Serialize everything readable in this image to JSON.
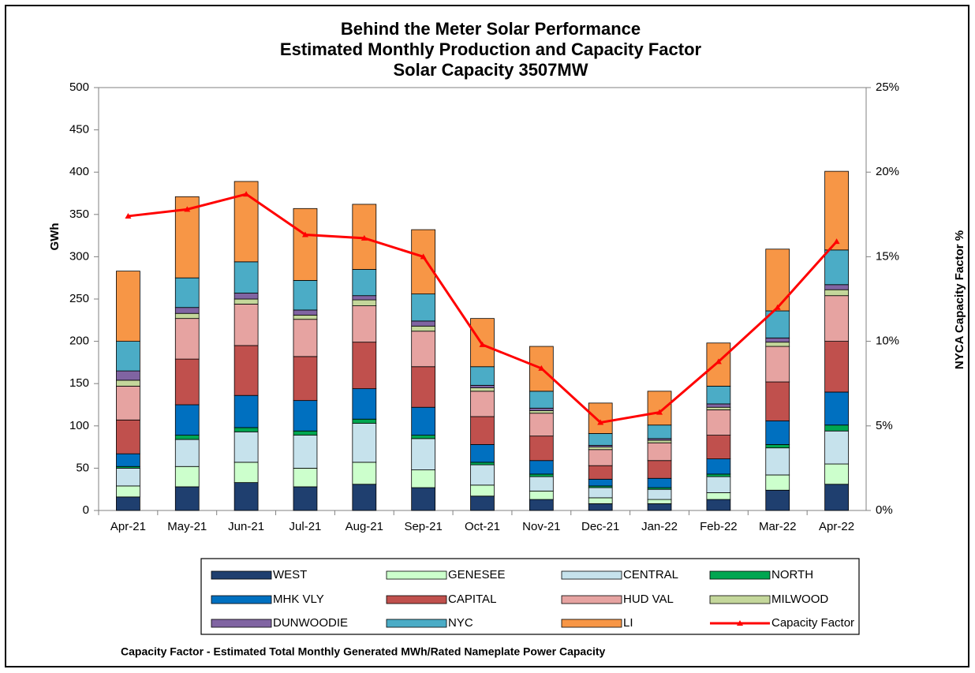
{
  "chart_data": {
    "type": "bar",
    "stacked": true,
    "title_lines": [
      "Behind the Meter Solar Performance",
      "Estimated Monthly Production and Capacity Factor",
      "Solar Capacity 3507MW"
    ],
    "ylabel": "GWh",
    "y2label": "NYCA Capacity Factor %",
    "footnote": "Capacity Factor  - Estimated Total Monthly Generated MWh/Rated Nameplate Power Capacity",
    "categories": [
      "Apr-21",
      "May-21",
      "Jun-21",
      "Jul-21",
      "Aug-21",
      "Sep-21",
      "Oct-21",
      "Nov-21",
      "Dec-21",
      "Jan-22",
      "Feb-22",
      "Mar-22",
      "Apr-22"
    ],
    "ylim": [
      0,
      500
    ],
    "yticks": [
      0,
      50,
      100,
      150,
      200,
      250,
      300,
      350,
      400,
      450,
      500
    ],
    "y2lim": [
      0,
      25
    ],
    "y2ticks": [
      {
        "value": 0,
        "label": "0%"
      },
      {
        "value": 5,
        "label": "5%"
      },
      {
        "value": 10,
        "label": "10%"
      },
      {
        "value": 15,
        "label": "15%"
      },
      {
        "value": 20,
        "label": "20%"
      },
      {
        "value": 25,
        "label": "25%"
      }
    ],
    "grid": false,
    "legend_position": "bottom",
    "series": [
      {
        "name": "WEST",
        "color": "#1f3f6f",
        "values": [
          16,
          28,
          33,
          28,
          31,
          27,
          17,
          13,
          8,
          8,
          13,
          24,
          31
        ]
      },
      {
        "name": "GENESEE",
        "color": "#ccffcc",
        "values": [
          13,
          24,
          24,
          22,
          26,
          21,
          13,
          10,
          7,
          5,
          8,
          18,
          24
        ]
      },
      {
        "name": "CENTRAL",
        "color": "#c6e2ec",
        "values": [
          21,
          32,
          36,
          39,
          46,
          37,
          24,
          17,
          12,
          12,
          19,
          32,
          39
        ]
      },
      {
        "name": "NORTH",
        "color": "#00a651",
        "values": [
          2,
          5,
          5,
          5,
          5,
          4,
          3,
          3,
          2,
          2,
          3,
          4,
          7
        ]
      },
      {
        "name": "MHK VLY",
        "color": "#0070c0",
        "values": [
          15,
          36,
          38,
          36,
          36,
          33,
          21,
          16,
          8,
          11,
          18,
          28,
          39
        ]
      },
      {
        "name": "CAPITAL",
        "color": "#c0504d",
        "values": [
          40,
          54,
          59,
          52,
          55,
          48,
          33,
          29,
          16,
          21,
          28,
          46,
          60
        ]
      },
      {
        "name": "HUD VAL",
        "color": "#e6a3a1",
        "values": [
          40,
          48,
          49,
          44,
          43,
          42,
          30,
          27,
          19,
          21,
          30,
          42,
          54
        ]
      },
      {
        "name": "MILWOOD",
        "color": "#c4d79b",
        "values": [
          7,
          6,
          6,
          5,
          7,
          6,
          4,
          3,
          3,
          3,
          3,
          5,
          7
        ]
      },
      {
        "name": "DUNWOODIE",
        "color": "#8064a2",
        "values": [
          11,
          7,
          7,
          6,
          5,
          6,
          3,
          3,
          2,
          2,
          4,
          5,
          6
        ]
      },
      {
        "name": "NYC",
        "color": "#4bacc6",
        "values": [
          35,
          35,
          37,
          35,
          31,
          32,
          22,
          20,
          14,
          16,
          21,
          32,
          41
        ]
      },
      {
        "name": "LI",
        "color": "#f79646",
        "values": [
          83,
          96,
          95,
          85,
          77,
          76,
          57,
          53,
          36,
          40,
          51,
          73,
          93
        ]
      },
      {
        "name": "Capacity Factor",
        "color": "#ff0000",
        "type": "line",
        "axis": "y2",
        "values": [
          17.4,
          17.8,
          18.7,
          16.3,
          16.1,
          15.0,
          9.8,
          8.4,
          5.2,
          5.8,
          8.8,
          12.0,
          15.9
        ]
      }
    ]
  }
}
